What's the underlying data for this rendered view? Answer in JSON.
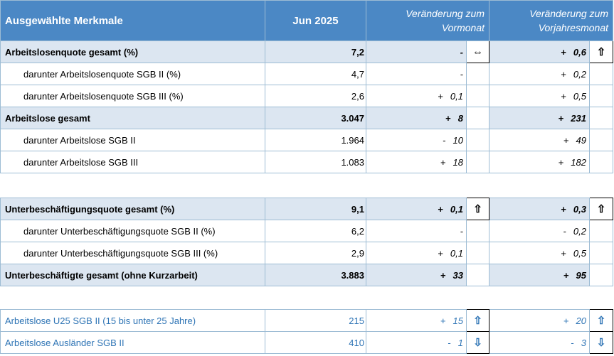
{
  "header": {
    "col_feature": "Ausgewählte Merkmale",
    "col_period": "Jun 2025",
    "col_change_month": [
      "Veränderung zum",
      "Vormonat"
    ],
    "col_change_year": [
      "Veränderung zum",
      "Vorjahresmonat"
    ]
  },
  "section1": [
    {
      "label": "Arbeitslosenquote gesamt (%)",
      "value": "7,2",
      "m_sign": "",
      "m_val": "-",
      "m_arrow": "⇔",
      "y_sign": "+",
      "y_val": "0,6",
      "y_arrow": "⇧"
    },
    {
      "label": "darunter Arbeitslosenquote SGB II (%)",
      "value": "4,7",
      "m_sign": "",
      "m_val": "-",
      "m_arrow": "",
      "y_sign": "+",
      "y_val": "0,2",
      "y_arrow": ""
    },
    {
      "label": "darunter Arbeitslosenquote SGB III (%)",
      "value": "2,6",
      "m_sign": "+",
      "m_val": "0,1",
      "m_arrow": "",
      "y_sign": "+",
      "y_val": "0,5",
      "y_arrow": ""
    },
    {
      "label": "Arbeitslose gesamt",
      "value": "3.047",
      "m_sign": "+",
      "m_val": "8",
      "m_arrow": "",
      "y_sign": "+",
      "y_val": "231",
      "y_arrow": ""
    },
    {
      "label": "darunter Arbeitslose SGB II",
      "value": "1.964",
      "m_sign": "-",
      "m_val": "10",
      "m_arrow": "",
      "y_sign": "+",
      "y_val": "49",
      "y_arrow": ""
    },
    {
      "label": "darunter Arbeitslose SGB III",
      "value": "1.083",
      "m_sign": "+",
      "m_val": "18",
      "m_arrow": "",
      "y_sign": "+",
      "y_val": "182",
      "y_arrow": ""
    }
  ],
  "section2": [
    {
      "label": "Unterbeschäftigungsquote gesamt (%)",
      "value": "9,1",
      "m_sign": "+",
      "m_val": "0,1",
      "m_arrow": "⇧",
      "y_sign": "+",
      "y_val": "0,3",
      "y_arrow": "⇧"
    },
    {
      "label": "darunter Unterbeschäftigungsquote SGB II (%)",
      "value": "6,2",
      "m_sign": "",
      "m_val": "-",
      "m_arrow": "",
      "y_sign": "-",
      "y_val": "0,2",
      "y_arrow": ""
    },
    {
      "label": "darunter Unterbeschäftigungsquote SGB III (%)",
      "value": "2,9",
      "m_sign": "+",
      "m_val": "0,1",
      "m_arrow": "",
      "y_sign": "+",
      "y_val": "0,5",
      "y_arrow": ""
    },
    {
      "label": "Unterbeschäftigte gesamt (ohne Kurzarbeit)",
      "value": "3.883",
      "m_sign": "+",
      "m_val": "33",
      "m_arrow": "",
      "y_sign": "+",
      "y_val": "95",
      "y_arrow": ""
    }
  ],
  "section3": [
    {
      "label": "Arbeitslose U25 SGB II (15 bis unter 25 Jahre)",
      "value": "215",
      "m_sign": "+",
      "m_val": "15",
      "m_arrow": "⇧",
      "y_sign": "+",
      "y_val": "20",
      "y_arrow": "⇧"
    },
    {
      "label": "Arbeitslose Ausländer SGB II",
      "value": "410",
      "m_sign": "-",
      "m_val": "1",
      "m_arrow": "⇩",
      "y_sign": "-",
      "y_val": "3",
      "y_arrow": "⇩"
    }
  ],
  "colors": {
    "header_bg": "#4b88c5",
    "bold_row_bg": "#dce6f1",
    "link_blue": "#2e74b5",
    "border": "#9dbcd4"
  }
}
